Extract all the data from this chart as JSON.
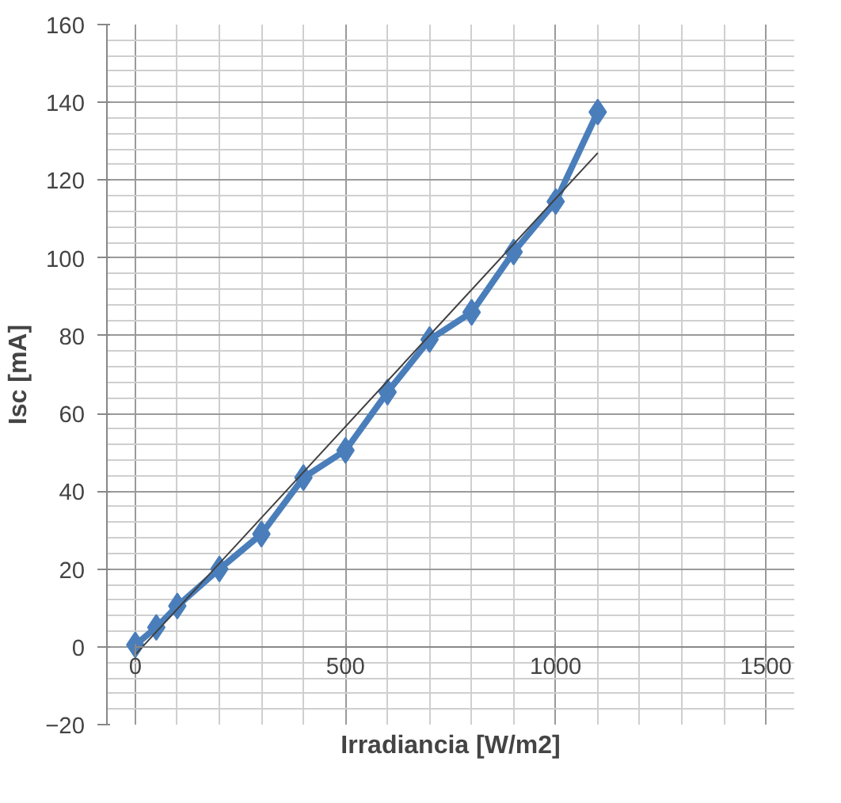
{
  "chart_data": {
    "type": "line",
    "xlabel": "Irradiancia [W/m2]",
    "ylabel": "Isc [mA]",
    "xlim": [
      0,
      1500
    ],
    "xticks": [
      0,
      500,
      1000,
      1500
    ],
    "ylim": [
      -20,
      160
    ],
    "yticks": [
      -20,
      0,
      20,
      40,
      60,
      80,
      100,
      120,
      140,
      160
    ],
    "grid": true,
    "marker": "diamond",
    "line_style": "solid",
    "series": [
      {
        "color": "#4a7ebb",
        "x": [
          0,
          50,
          100,
          200,
          300,
          400,
          500,
          600,
          700,
          800,
          900,
          1000,
          1100
        ],
        "values": [
          0.5,
          5,
          10.5,
          20,
          29,
          43.5,
          50.5,
          65.5,
          79,
          86,
          101.5,
          114.5,
          137.5
        ]
      },
      {
        "type": "line",
        "marker": "none",
        "color": "#404040",
        "x": [
          0,
          1100
        ],
        "values": [
          -2,
          127
        ]
      }
    ]
  }
}
